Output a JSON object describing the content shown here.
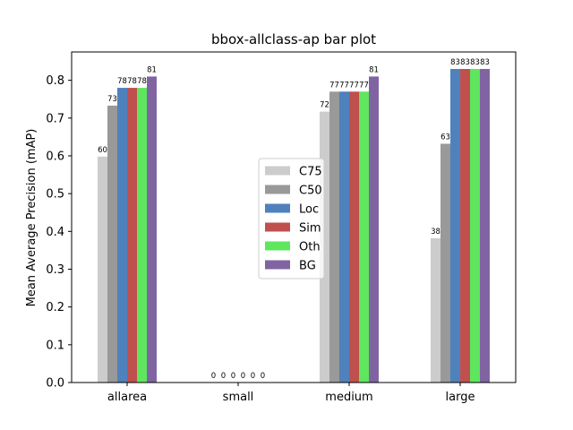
{
  "chart_data": {
    "type": "bar",
    "title": "bbox-allclass-ap bar plot",
    "xlabel": "",
    "ylabel": "Mean Average Precision (mAP)",
    "categories": [
      "allarea",
      "small",
      "medium",
      "large"
    ],
    "ylim": [
      0,
      0.875
    ],
    "yticks": [
      0.0,
      0.1,
      0.2,
      0.3,
      0.4,
      0.5,
      0.6,
      0.7,
      0.8
    ],
    "ytick_labels": [
      "0.0",
      "0.1",
      "0.2",
      "0.3",
      "0.4",
      "0.5",
      "0.6",
      "0.7",
      "0.8"
    ],
    "grid": false,
    "legend_position": "center",
    "series": [
      {
        "name": "C75",
        "color": "#cccccc",
        "values": [
          0.598,
          0.0,
          0.717,
          0.382
        ],
        "labels": [
          "60",
          "0",
          "72",
          "38"
        ]
      },
      {
        "name": "C50",
        "color": "#999999",
        "values": [
          0.733,
          0.0,
          0.77,
          0.632
        ],
        "labels": [
          "73",
          "0",
          "77",
          "63"
        ]
      },
      {
        "name": "Loc",
        "color": "#4f81bd",
        "values": [
          0.78,
          0.0,
          0.77,
          0.83
        ],
        "labels": [
          "78",
          "0",
          "77",
          "83"
        ]
      },
      {
        "name": "Sim",
        "color": "#c0504d",
        "values": [
          0.78,
          0.0,
          0.77,
          0.83
        ],
        "labels": [
          "78",
          "0",
          "77",
          "83"
        ]
      },
      {
        "name": "Oth",
        "color": "#5ee65e",
        "values": [
          0.78,
          0.0,
          0.77,
          0.83
        ],
        "labels": [
          "78",
          "0",
          "77",
          "83"
        ]
      },
      {
        "name": "BG",
        "color": "#8064a2",
        "values": [
          0.81,
          0.0,
          0.81,
          0.83
        ],
        "labels": [
          "81",
          "0",
          "81",
          "83"
        ]
      }
    ]
  }
}
